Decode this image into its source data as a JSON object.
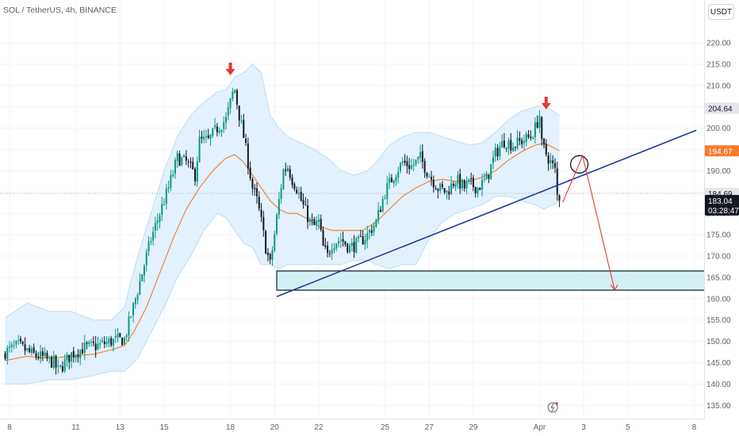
{
  "header": {
    "title": "SOL / TetherUS, 4h, BINANCE",
    "currency_button": "USDT"
  },
  "colors": {
    "up": "#089981",
    "down": "#131722",
    "band_fill": "#ddeefb",
    "band_edge": "#bcdcf5",
    "ma": "#f57c2c",
    "trendline": "#1c3aa1",
    "arrow": "#e53935",
    "zone_fill": "#c8eef3",
    "zone_border": "#1c2834",
    "grid": "#f0f3fa"
  },
  "chart_data": {
    "type": "candlestick",
    "symbol": "SOL / TetherUS",
    "interval": "4h",
    "exchange": "BINANCE",
    "ylim": [
      133,
      228
    ],
    "y_ticks": [
      135,
      140,
      145,
      150,
      155,
      160,
      165,
      170,
      175,
      180,
      185,
      190,
      195,
      200,
      205,
      210,
      215,
      220
    ],
    "y_tick_labels": [
      "135.00",
      "140.00",
      "145.00",
      "150.00",
      "155.00",
      "160.00",
      "165.00",
      "170.00",
      "175.00",
      "180.00",
      "185.00",
      "190.00",
      "195.00",
      "200.00",
      "205.00",
      "210.00",
      "215.00",
      "220.00"
    ],
    "x_ticks": [
      {
        "bar": 2,
        "label": "8"
      },
      {
        "bar": 32,
        "label": "11"
      },
      {
        "bar": 52,
        "label": "13"
      },
      {
        "bar": 72,
        "label": "15"
      },
      {
        "bar": 102,
        "label": "18"
      },
      {
        "bar": 122,
        "label": "20"
      },
      {
        "bar": 142,
        "label": "22"
      },
      {
        "bar": 172,
        "label": "25"
      },
      {
        "bar": 192,
        "label": "27"
      },
      {
        "bar": 212,
        "label": "29"
      },
      {
        "bar": 242,
        "label": "Apr"
      },
      {
        "bar": 262,
        "label": "3"
      },
      {
        "bar": 282,
        "label": "5"
      },
      {
        "bar": 312,
        "label": "8"
      }
    ],
    "x_start": "8",
    "bar_spacing_note": "4h bars",
    "candles": [],
    "keypoints": [
      [
        0,
        147.5
      ],
      [
        6,
        149
      ],
      [
        12,
        147
      ],
      [
        18,
        146
      ],
      [
        22,
        145
      ],
      [
        24,
        143
      ],
      [
        30,
        147
      ],
      [
        36,
        148.5
      ],
      [
        42,
        149
      ],
      [
        48,
        150
      ],
      [
        54,
        150.5
      ],
      [
        58,
        158
      ],
      [
        62,
        166
      ],
      [
        66,
        174
      ],
      [
        70,
        180
      ],
      [
        74,
        186
      ],
      [
        78,
        193
      ],
      [
        82,
        192
      ],
      [
        86,
        189
      ],
      [
        88,
        197
      ],
      [
        92,
        197
      ],
      [
        96,
        200
      ],
      [
        100,
        202
      ],
      [
        103,
        208
      ],
      [
        104,
        209
      ],
      [
        106,
        203
      ],
      [
        108,
        198
      ],
      [
        110,
        192
      ],
      [
        112,
        186
      ],
      [
        114,
        183
      ],
      [
        116,
        178
      ],
      [
        118,
        172
      ],
      [
        120,
        168
      ],
      [
        122,
        175
      ],
      [
        124,
        183
      ],
      [
        126,
        190
      ],
      [
        128,
        191
      ],
      [
        130,
        188
      ],
      [
        132,
        186
      ],
      [
        134,
        183
      ],
      [
        138,
        178
      ],
      [
        140,
        177
      ],
      [
        142,
        178
      ],
      [
        144,
        172
      ],
      [
        146,
        170
      ],
      [
        148,
        173
      ],
      [
        152,
        174
      ],
      [
        156,
        172
      ],
      [
        160,
        173
      ],
      [
        164,
        175
      ],
      [
        168,
        178
      ],
      [
        172,
        185
      ],
      [
        176,
        189
      ],
      [
        180,
        192
      ],
      [
        184,
        191
      ],
      [
        188,
        193
      ],
      [
        192,
        189
      ],
      [
        196,
        186
      ],
      [
        200,
        185
      ],
      [
        204,
        188
      ],
      [
        208,
        186
      ],
      [
        210,
        187
      ],
      [
        214,
        186
      ],
      [
        218,
        188
      ],
      [
        222,
        194
      ],
      [
        226,
        197
      ],
      [
        230,
        196
      ],
      [
        234,
        197
      ],
      [
        238,
        198
      ],
      [
        240,
        200
      ],
      [
        242,
        203
      ],
      [
        243,
        196
      ],
      [
        245,
        194
      ],
      [
        247,
        192
      ],
      [
        249,
        190
      ],
      [
        250,
        184
      ],
      [
        251,
        183.04
      ]
    ],
    "moving_average_keypoints": [
      [
        0,
        145.5
      ],
      [
        10,
        146.5
      ],
      [
        20,
        146
      ],
      [
        30,
        146.5
      ],
      [
        40,
        147
      ],
      [
        48,
        148
      ],
      [
        54,
        149
      ],
      [
        58,
        152
      ],
      [
        64,
        158
      ],
      [
        70,
        166
      ],
      [
        76,
        174
      ],
      [
        82,
        181
      ],
      [
        88,
        186
      ],
      [
        94,
        190
      ],
      [
        100,
        193
      ],
      [
        104,
        193.8
      ],
      [
        108,
        192
      ],
      [
        112,
        189
      ],
      [
        116,
        186
      ],
      [
        120,
        183
      ],
      [
        124,
        181
      ],
      [
        128,
        180
      ],
      [
        132,
        180
      ],
      [
        136,
        179
      ],
      [
        142,
        177
      ],
      [
        148,
        176
      ],
      [
        156,
        176
      ],
      [
        162,
        176
      ],
      [
        168,
        178
      ],
      [
        174,
        181
      ],
      [
        180,
        184
      ],
      [
        186,
        186
      ],
      [
        192,
        187.5
      ],
      [
        198,
        188
      ],
      [
        204,
        187.5
      ],
      [
        210,
        187.5
      ],
      [
        216,
        188.5
      ],
      [
        222,
        190
      ],
      [
        228,
        192.5
      ],
      [
        234,
        194.5
      ],
      [
        240,
        196
      ],
      [
        244,
        196.5
      ],
      [
        248,
        195.5
      ],
      [
        251,
        194.67
      ]
    ],
    "bollinger_keypoints": [
      [
        0,
        140,
        155.5
      ],
      [
        10,
        140,
        159
      ],
      [
        20,
        141,
        157
      ],
      [
        30,
        141,
        157
      ],
      [
        40,
        142,
        155
      ],
      [
        48,
        143,
        155
      ],
      [
        54,
        143,
        158
      ],
      [
        60,
        146,
        170
      ],
      [
        66,
        152,
        180
      ],
      [
        72,
        158,
        190
      ],
      [
        78,
        165,
        198
      ],
      [
        84,
        170,
        203
      ],
      [
        90,
        176,
        206
      ],
      [
        96,
        180,
        208.5
      ],
      [
        100,
        179,
        209
      ],
      [
        104,
        176,
        212
      ],
      [
        108,
        173,
        213
      ],
      [
        112,
        172,
        215
      ],
      [
        116,
        168,
        213
      ],
      [
        120,
        168,
        203
      ],
      [
        124,
        167,
        200
      ],
      [
        128,
        168,
        198
      ],
      [
        132,
        168,
        197
      ],
      [
        136,
        168,
        196
      ],
      [
        140,
        168,
        195
      ],
      [
        146,
        168,
        193
      ],
      [
        152,
        168,
        190
      ],
      [
        158,
        169,
        189
      ],
      [
        164,
        169,
        190
      ],
      [
        168,
        168,
        192
      ],
      [
        174,
        167,
        196
      ],
      [
        180,
        168,
        198
      ],
      [
        186,
        168,
        199
      ],
      [
        192,
        174,
        199
      ],
      [
        198,
        178,
        198
      ],
      [
        204,
        180,
        197
      ],
      [
        210,
        181,
        196
      ],
      [
        216,
        182,
        196.5
      ],
      [
        222,
        184,
        199
      ],
      [
        228,
        184,
        202
      ],
      [
        234,
        183,
        204
      ],
      [
        240,
        182,
        205
      ],
      [
        244,
        181,
        205.5
      ],
      [
        248,
        182,
        204
      ],
      [
        251,
        183,
        203
      ]
    ],
    "price_labels": [
      {
        "id": "high",
        "value": 204.64,
        "text": "204.64",
        "style": "gray"
      },
      {
        "id": "ma",
        "value": 194.67,
        "text": "194.67",
        "style": "orange"
      },
      {
        "id": "prev",
        "value": 184.69,
        "text": "184.69",
        "style": "gray"
      },
      {
        "id": "last",
        "value": 183.04,
        "text": "183.04",
        "style": "dark",
        "countdown": "03:28:47"
      }
    ],
    "trendline": {
      "from": [
        123,
        160.5
      ],
      "to": [
        313,
        199.5
      ]
    },
    "demand_zone": {
      "bar_from": 123,
      "bar_to": 318,
      "price_low": 162,
      "price_high": 166.5
    },
    "breakdown_circle": {
      "bar": 260,
      "price": 191.5
    },
    "top_markers": [
      {
        "bar": 102,
        "price": 213.5
      },
      {
        "bar": 245,
        "price": 205.5
      }
    ],
    "projection": [
      [
        252.5,
        182.6
      ],
      [
        261.5,
        193.5
      ],
      [
        276,
        162
      ]
    ],
    "current_price_line": 184.69
  }
}
